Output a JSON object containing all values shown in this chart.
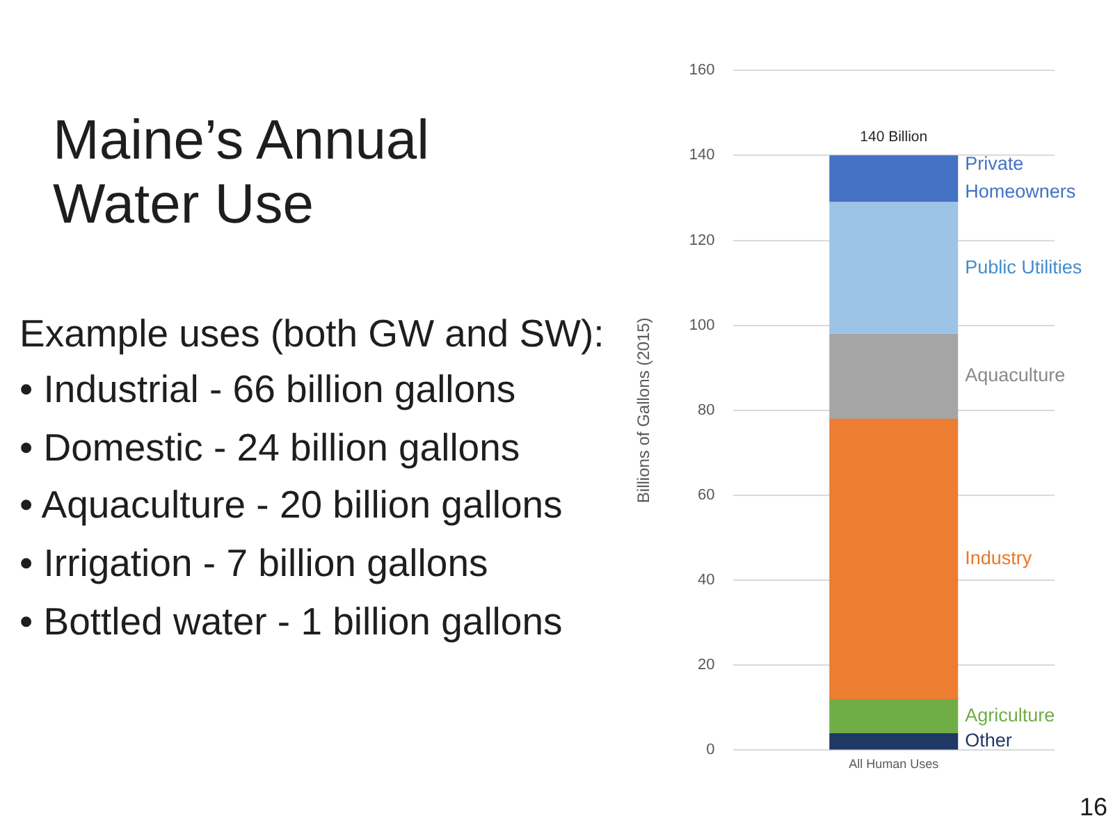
{
  "chart_data": {
    "type": "bar",
    "title": "Maine’s Annual Water Use",
    "subtitle": "Example uses (both GW and SW):",
    "annotations": [
      "• Industrial - 66 billion gallons",
      "• Domestic - 24 billion gallons",
      "• Aquaculture - 20 billion gallons",
      "• Irrigation - 7 billion gallons",
      "• Bottled water - 1 billion gallons",
      "16"
    ],
    "ylabel": "Billions of Gallons (2015)",
    "categories": [
      "All Human Uses"
    ],
    "stacked": true,
    "series": [
      {
        "name": "Other",
        "color": "#203864",
        "values": [
          4
        ]
      },
      {
        "name": "Agriculture",
        "color": "#70ad47",
        "values": [
          8
        ]
      },
      {
        "name": "Industry",
        "color": "#ed7d31",
        "values": [
          66
        ]
      },
      {
        "name": "Aquaculture",
        "color": "#a5a5a5",
        "values": [
          20
        ]
      },
      {
        "name": "Public Utilities",
        "color": "#9dc3e6",
        "values": [
          31
        ]
      },
      {
        "name": "Private Homeowners",
        "color": "#4472c4",
        "values": [
          11
        ]
      }
    ],
    "totals": [
      "140 Billion"
    ],
    "ylim": [
      0,
      160
    ],
    "yticks": [
      0,
      20,
      40,
      60,
      80,
      100,
      120,
      140,
      160
    ],
    "grid": "y",
    "legend": false
  }
}
